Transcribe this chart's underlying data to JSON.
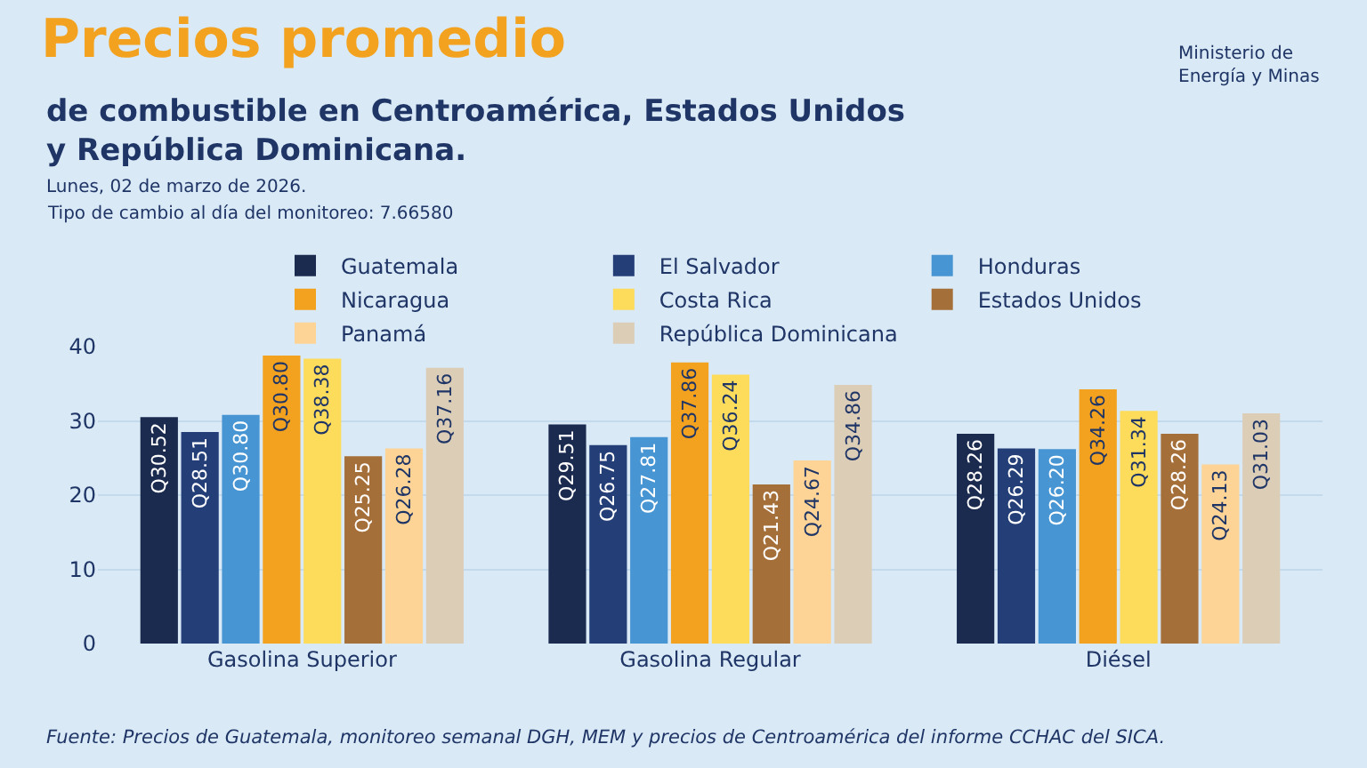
{
  "chart_data": {
    "type": "bar",
    "title": "Precios promedio",
    "subtitle": "de combustible en Centroamérica, Estados Unidos\ny República Dominicana.",
    "categories": [
      "Gasolina Superior",
      "Gasolina Regular",
      "Diésel"
    ],
    "series": [
      {
        "name": "Guatemala",
        "color": "#1b2b4f",
        "values": [
          30.52,
          29.51,
          28.26
        ],
        "value_labels": [
          "Q30.52",
          "Q29.51",
          "Q28.26"
        ]
      },
      {
        "name": "El Salvador",
        "color": "#243f78",
        "values": [
          28.51,
          26.75,
          26.29
        ],
        "value_labels": [
          "Q28.51",
          "Q26.75",
          "Q26.29"
        ]
      },
      {
        "name": "Honduras",
        "color": "#4795d2",
        "values": [
          30.8,
          27.81,
          26.2
        ],
        "value_labels": [
          "Q30.80",
          "Q27.81",
          "Q26.20"
        ]
      },
      {
        "name": "Nicaragua",
        "color": "#f3a21f",
        "values": [
          38.8,
          37.86,
          34.26
        ],
        "value_labels": [
          "Q30.80",
          "Q37.86",
          "Q34.26"
        ]
      },
      {
        "name": "Costa Rica",
        "color": "#fddc5c",
        "values": [
          38.38,
          36.24,
          31.34
        ],
        "value_labels": [
          "Q38.38",
          "Q36.24",
          "Q31.34"
        ]
      },
      {
        "name": "Estados Unidos",
        "color": "#a56f3a",
        "values": [
          25.25,
          21.43,
          28.26
        ],
        "value_labels": [
          "Q25.25",
          "Q21.43",
          "Q28.26"
        ]
      },
      {
        "name": "Panamá",
        "color": "#fdd496",
        "values": [
          26.28,
          24.67,
          24.13
        ],
        "value_labels": [
          "Q26.28",
          "Q24.67",
          "Q24.13"
        ]
      },
      {
        "name": "República Dominicana",
        "color": "#dccdb7",
        "values": [
          37.16,
          34.86,
          31.03
        ],
        "value_labels": [
          "Q37.16",
          "Q34.86",
          "Q31.03"
        ]
      }
    ],
    "ylim": [
      0,
      40
    ],
    "yticks": [
      0,
      10,
      20,
      30,
      40
    ],
    "grid": "y",
    "legend": "top",
    "annotations": [
      "Lunes, 02 de marzo de 2026.",
      "Tipo de cambio al día del monitoreo: 7.66580",
      "Ministerio de\nEnergía y Minas",
      "Fuente: Precios de Guatemala, monitoreo semanal DGH, MEM y precios de Centroamérica del informe CCHAC del SICA."
    ]
  }
}
